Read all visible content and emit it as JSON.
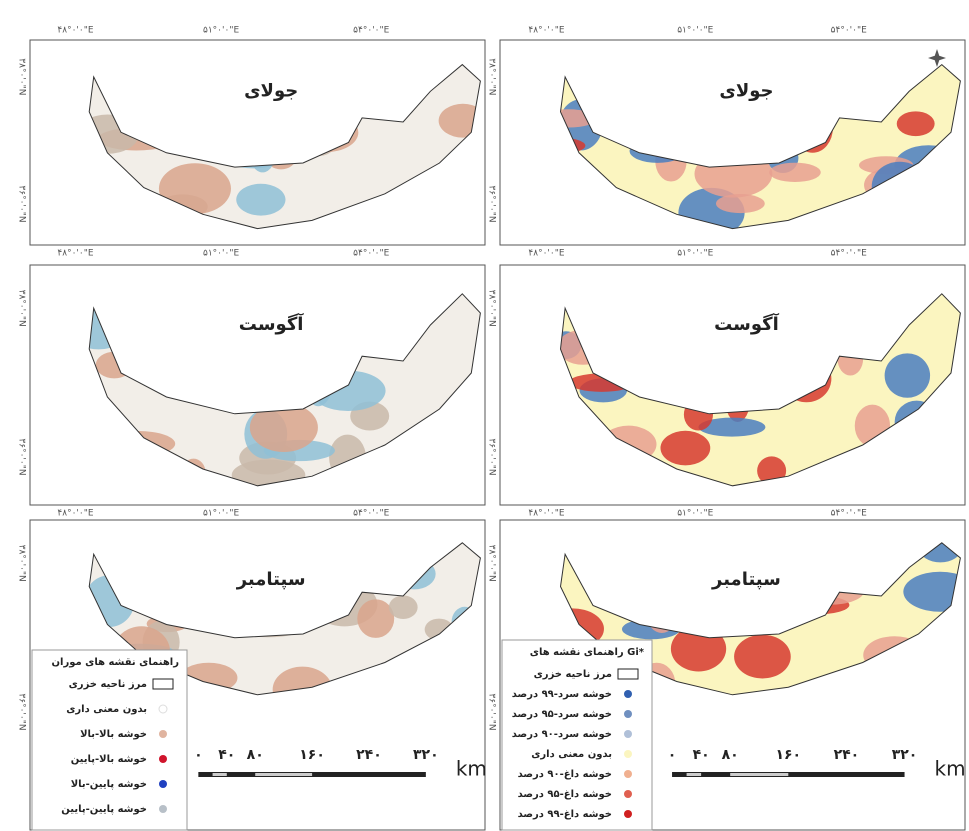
{
  "figure": {
    "coordinates": {
      "top_labels": [
        "۴۸°۰'۰\"E",
        "۵۱°۰'۰\"E",
        "۵۴°۰'۰\"E"
      ],
      "side_labels": [
        "۳۸°۰'۰\"N",
        "۳۶°۰'۰\"N"
      ]
    },
    "scale_bar": {
      "labels": [
        "۰",
        "۴۰",
        "۸۰",
        "۱۶۰",
        "۲۴۰",
        "۳۲۰"
      ],
      "unit": "km"
    },
    "columns": [
      {
        "base_color": "#f2eee8",
        "panels": [
          {
            "title": "جولای"
          },
          {
            "title": "آگوست"
          },
          {
            "title": "سپتامبر"
          }
        ],
        "legend": {
          "title": "راهنمای نقشه های موران",
          "items": [
            {
              "label": "مرز ناحیه خزری",
              "color": "none"
            },
            {
              "label": "بدون معنی داری",
              "color": "#ffffff"
            },
            {
              "label": "خوشه بالا-بالا",
              "color": "#e0b4a0"
            },
            {
              "label": "خوشه بالا-پایین",
              "color": "#d0142c"
            },
            {
              "label": "خوشه پایین-بالا",
              "color": "#2040c0"
            },
            {
              "label": "خوشه پایین-پایین",
              "color": "#b8c0c8"
            }
          ]
        }
      },
      {
        "base_color": "#fbf5c0",
        "panels": [
          {
            "title": "جولای"
          },
          {
            "title": "آگوست"
          },
          {
            "title": "سپتامبر"
          }
        ],
        "legend": {
          "title": "راهنمای نقشه های Gi*",
          "items": [
            {
              "label": "مرز ناحیه خزری",
              "color": "none"
            },
            {
              "label": "خوشه سرد-۹۹ درصد",
              "color": "#3060b0"
            },
            {
              "label": "خوشه سرد-۹۵ درصد",
              "color": "#7090c0"
            },
            {
              "label": "خوشه سرد-۹۰ درصد",
              "color": "#b0c0d8"
            },
            {
              "label": "بدون معنی داری",
              "color": "#fbf5c0"
            },
            {
              "label": "خوشه داغ-۹۰ درصد",
              "color": "#f0b090"
            },
            {
              "label": "خوشه داغ-۹۵ درصد",
              "color": "#e06050"
            },
            {
              "label": "خوشه داغ-۹۹ درصد",
              "color": "#d02020"
            }
          ]
        }
      }
    ]
  }
}
